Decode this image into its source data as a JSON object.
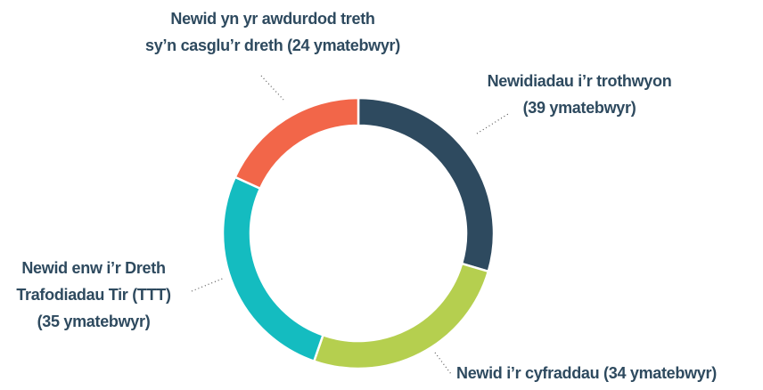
{
  "chart_data": {
    "type": "donut",
    "labels": [
      [
        "Newidiadau i’r trothwyon",
        "(39 ymatebwyr)"
      ],
      [
        "Newid i’r cyfraddau (34 ymatebwyr)"
      ],
      [
        "Newid enw i’r Dreth",
        "Trafodiadau Tir (TTT)",
        "(35 ymatebwyr)"
      ],
      [
        "Newid yn yr awdurdod treth",
        "sy’n casglu’r dreth (24 ymatebwyr)"
      ]
    ],
    "values": [
      39,
      34,
      35,
      24
    ],
    "colors": [
      "#2e4a5f",
      "#b5cf4f",
      "#14bcc0",
      "#f26649"
    ]
  }
}
